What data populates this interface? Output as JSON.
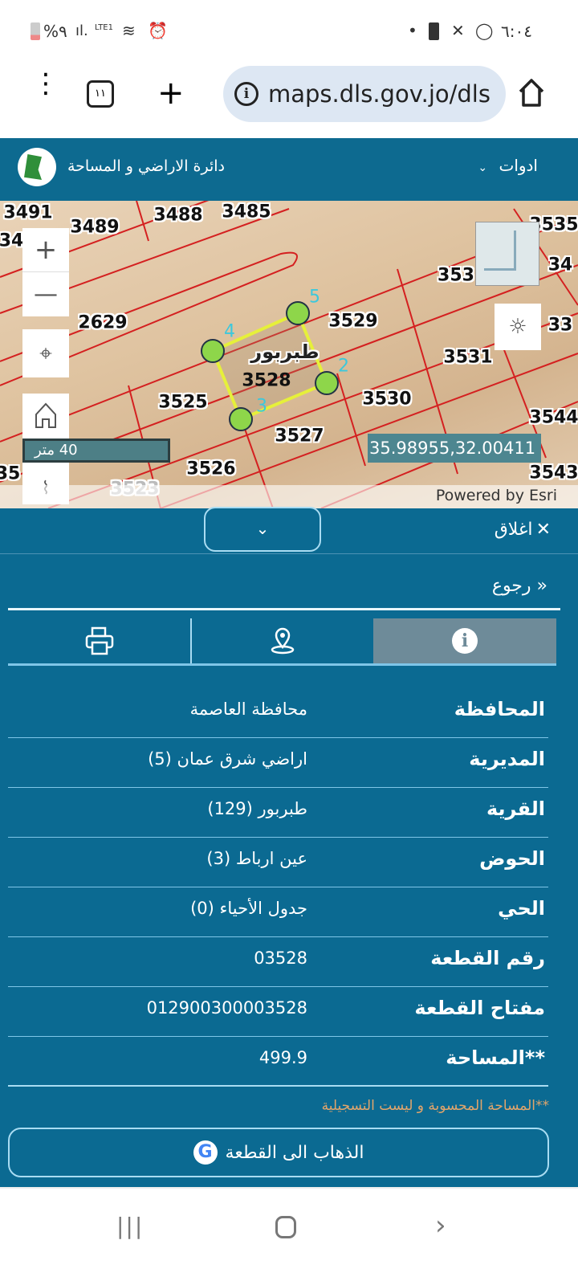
{
  "status_bar": {
    "battery": "%٩",
    "network": "LTE1",
    "time": "٦:٠٤"
  },
  "browser": {
    "url": "maps.dls.gov.jo/dls",
    "tab_count": "١١"
  },
  "app_header": {
    "title": "دائرة الاراضي و المساحة",
    "tools_label": "ادوات"
  },
  "map": {
    "parcels": [
      "3491",
      "34",
      "3489",
      "3488",
      "3485",
      "2629",
      "3529",
      "3528",
      "3525",
      "3530",
      "3527",
      "3526",
      "3523",
      "3531",
      "353",
      "3535",
      "34",
      "33",
      "3544",
      "3543",
      "35"
    ],
    "village_label": "طبربور",
    "vertex_labels": [
      "5",
      "4",
      "2",
      "3"
    ],
    "scale_label": "40 متر",
    "coordinates": "35.98955,32.00411",
    "attribution": "Powered by Esri",
    "highlight_color": "#e6f03a",
    "line_color": "#d42020"
  },
  "panel": {
    "close_label": "اغلاق",
    "back_label": "رجوع",
    "tabs": [
      {
        "icon": "info-icon",
        "active": true
      },
      {
        "icon": "location-pin-icon",
        "active": false
      },
      {
        "icon": "printer-icon",
        "active": false
      }
    ],
    "rows": [
      {
        "label": "المحافظة",
        "value": "محافظة العاصمة"
      },
      {
        "label": "المديرية",
        "value": "اراضي شرق عمان (5)"
      },
      {
        "label": "القرية",
        "value": "طبربور (129)"
      },
      {
        "label": "الحوض",
        "value": "عين ارباط (3)"
      },
      {
        "label": "الحي",
        "value": "جدول الأحياء (0)"
      },
      {
        "label": "رقم القطعة",
        "value": "03528"
      },
      {
        "label": "مفتاح القطعة",
        "value": "012900300003528"
      },
      {
        "label": "**المساحة",
        "value": "499.9"
      }
    ],
    "note": "**المساحة المحسوبة و ليست التسجيلية",
    "goto_label": "الذهاب الى القطعة",
    "note_color": "#e2a56b"
  }
}
